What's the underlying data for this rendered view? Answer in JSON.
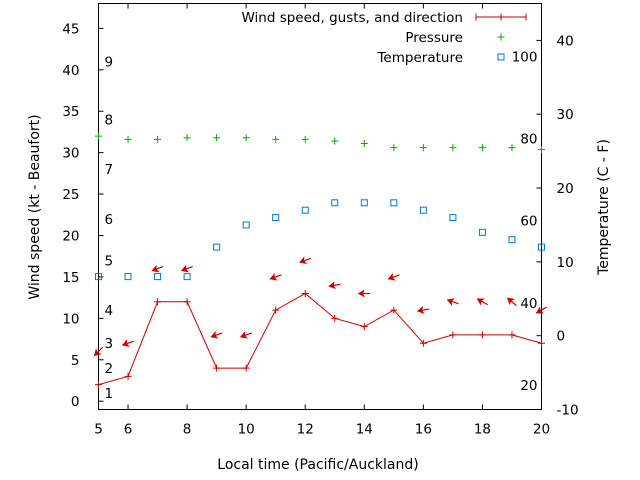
{
  "chart_data": {
    "type": "line",
    "x": [
      5,
      6,
      7,
      8,
      9,
      10,
      11,
      12,
      13,
      14,
      15,
      16,
      17,
      18,
      19,
      20
    ],
    "xlim": [
      5,
      20
    ],
    "xticks": [
      6,
      8,
      10,
      12,
      14,
      16,
      18,
      20
    ],
    "xlabel": "Local time (Pacific/Auckland)",
    "ylabel_left": "Wind speed (kt - Beaufort)",
    "ylabel_right": "Temperature (C - F)",
    "ylim_left": [
      -1,
      48
    ],
    "yticks_left": [
      0,
      5,
      10,
      15,
      20,
      25,
      30,
      35,
      40,
      45
    ],
    "ylim_right": [
      -10,
      45
    ],
    "yticks_right": [
      -10,
      0,
      10,
      20,
      30,
      40
    ],
    "beaufort_labels": [
      {
        "label": "1",
        "value": 1
      },
      {
        "label": "2",
        "value": 4
      },
      {
        "label": "3",
        "value": 7
      },
      {
        "label": "4",
        "value": 11
      },
      {
        "label": "5",
        "value": 17
      },
      {
        "label": "6",
        "value": 22
      },
      {
        "label": "7",
        "value": 28
      },
      {
        "label": "8",
        "value": 34
      },
      {
        "label": "9",
        "value": 41
      }
    ],
    "fahrenheit_labels": [
      {
        "label": "20",
        "value": -6.7
      },
      {
        "label": "40",
        "value": 4.4
      },
      {
        "label": "60",
        "value": 15.6
      },
      {
        "label": "80",
        "value": 26.7
      },
      {
        "label": "100",
        "value": 37.8
      }
    ],
    "series": [
      {
        "name": "Wind speed, gusts, and direction",
        "color": "#cc0000",
        "axis": "left",
        "values": [
          2,
          3,
          12,
          12,
          4,
          4,
          11,
          13,
          10,
          9,
          11,
          7,
          8,
          8,
          8,
          7
        ]
      },
      {
        "name": "Pressure",
        "color": "#00aa00",
        "axis": "left",
        "values": [
          32,
          31.6,
          31.6,
          31.8,
          31.8,
          31.8,
          31.6,
          31.6,
          31.4,
          31.1,
          30.6,
          30.6,
          30.6,
          30.6,
          30.6,
          30.4
        ]
      },
      {
        "name": "Temperature",
        "color": "#0077cc",
        "axis": "right",
        "values": [
          8,
          8,
          8,
          8,
          12,
          15,
          16,
          17,
          18,
          18,
          18,
          17,
          16,
          14,
          13,
          12
        ]
      }
    ],
    "wind_arrows": {
      "color": "#cc0000",
      "axis": "left",
      "points": [
        {
          "x": 5,
          "y": 6,
          "angle": 135
        },
        {
          "x": 6,
          "y": 7,
          "angle": 160
        },
        {
          "x": 7,
          "y": 16,
          "angle": 160
        },
        {
          "x": 8,
          "y": 16,
          "angle": 160
        },
        {
          "x": 9,
          "y": 8,
          "angle": 160
        },
        {
          "x": 10,
          "y": 8,
          "angle": 160
        },
        {
          "x": 11,
          "y": 15,
          "angle": 160
        },
        {
          "x": 12,
          "y": 17,
          "angle": 160
        },
        {
          "x": 13,
          "y": 14,
          "angle": 170
        },
        {
          "x": 14,
          "y": 13,
          "angle": 180
        },
        {
          "x": 15,
          "y": 15,
          "angle": 160
        },
        {
          "x": 16,
          "y": 11,
          "angle": 170
        },
        {
          "x": 17,
          "y": 12,
          "angle": 200
        },
        {
          "x": 18,
          "y": 12,
          "angle": 210
        },
        {
          "x": 19,
          "y": 12,
          "angle": 220
        },
        {
          "x": 20,
          "y": 11,
          "angle": 150
        }
      ]
    },
    "legend": {
      "position": "top-right",
      "entries": [
        {
          "label": "Wind speed, gusts, and direction",
          "marker": "line-plus"
        },
        {
          "label": "Pressure",
          "marker": "plus"
        },
        {
          "label": "Temperature",
          "marker": "square"
        }
      ]
    }
  }
}
